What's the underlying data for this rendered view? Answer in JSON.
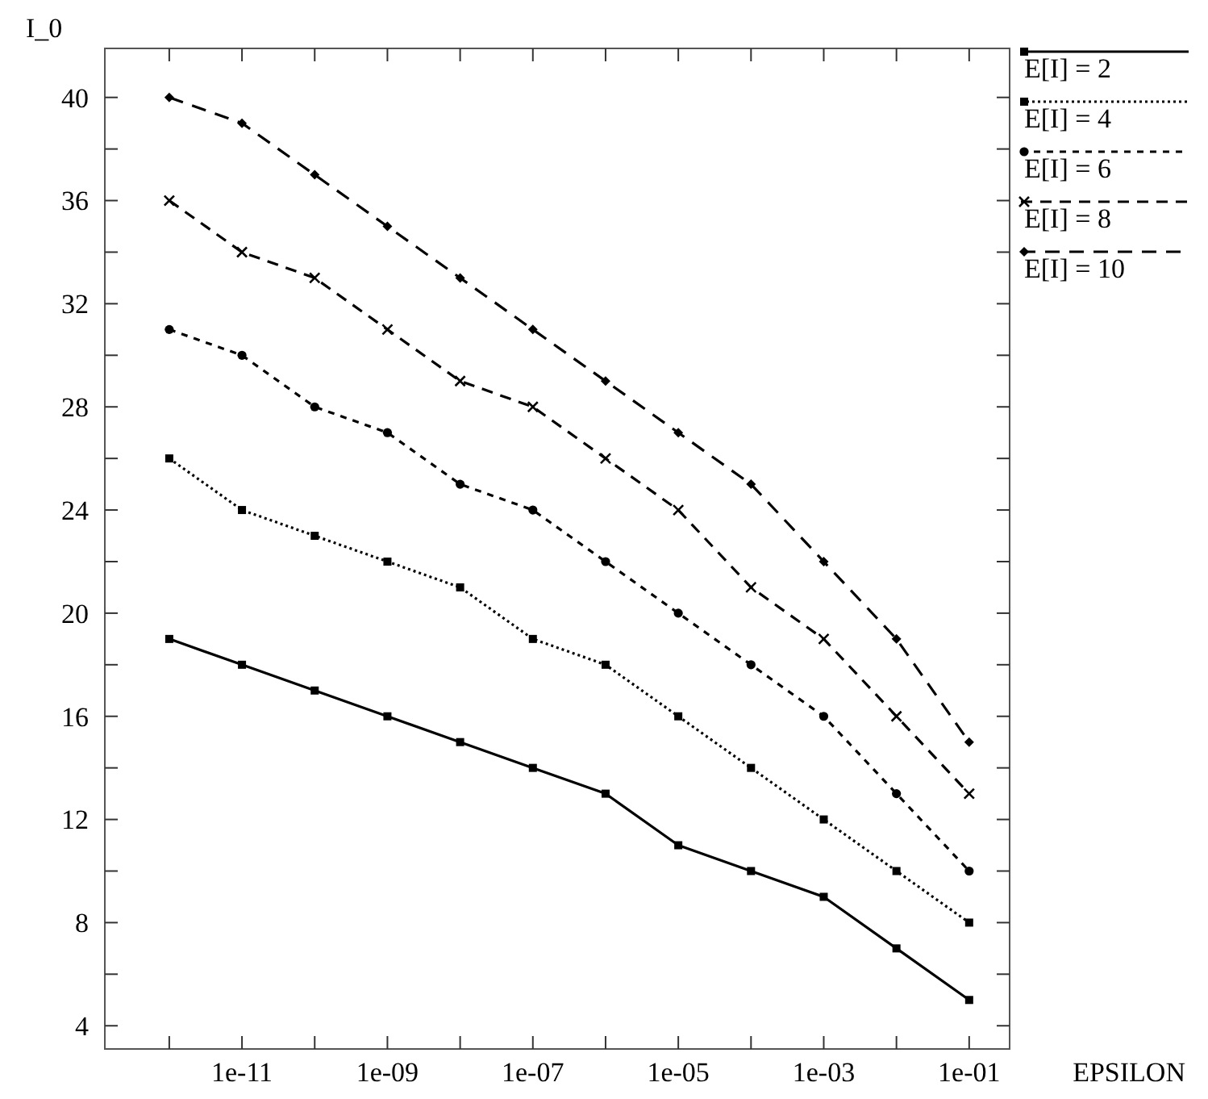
{
  "chart_data": {
    "type": "line",
    "xlabel": "EPSILON",
    "ylabel": "I_0",
    "log": "x",
    "grid": false,
    "legend": "top right",
    "x": [
      1e-12,
      1e-11,
      1e-10,
      1e-09,
      1e-08,
      1e-07,
      1e-06,
      1e-05,
      0.0001,
      0.001,
      0.01,
      0.1
    ],
    "xlim": [
      1.3e-13,
      0.36
    ],
    "xticks": [
      {
        "value": 1e-12,
        "label": null
      },
      {
        "value": 1e-11,
        "label": "1e-11"
      },
      {
        "value": 1e-10,
        "label": null
      },
      {
        "value": 1e-09,
        "label": "1e-09"
      },
      {
        "value": 1e-08,
        "label": null
      },
      {
        "value": 1e-07,
        "label": "1e-07"
      },
      {
        "value": 1e-06,
        "label": null
      },
      {
        "value": 1e-05,
        "label": "1e-05"
      },
      {
        "value": 0.0001,
        "label": null
      },
      {
        "value": 0.001,
        "label": "1e-03"
      },
      {
        "value": 0.01,
        "label": null
      },
      {
        "value": 0.1,
        "label": "1e-01"
      }
    ],
    "ylim": [
      3.1,
      41.9
    ],
    "yticks": [
      4,
      {
        "value": 6,
        "label": null
      },
      8,
      {
        "value": 10,
        "label": null
      },
      12,
      {
        "value": 14,
        "label": null
      },
      16,
      {
        "value": 18,
        "label": null
      },
      20,
      {
        "value": 22,
        "label": null
      },
      24,
      {
        "value": 26,
        "label": null
      },
      28,
      {
        "value": 30,
        "label": null
      },
      32,
      {
        "value": 34,
        "label": null
      },
      36,
      {
        "value": 38,
        "label": null
      },
      40
    ],
    "series": [
      {
        "name": "E[I] = 2",
        "color": "#000000",
        "marker": "square",
        "line_style": "solid",
        "values": [
          19,
          18,
          17,
          16,
          15,
          14,
          13,
          11,
          10,
          9,
          7,
          5
        ]
      },
      {
        "name": "E[I] = 4",
        "color": "#000000",
        "marker": "square",
        "line_style": "dotted",
        "values": [
          26,
          24,
          23,
          22,
          21,
          19,
          18,
          16,
          14,
          12,
          10,
          8
        ]
      },
      {
        "name": "E[I] = 6",
        "color": "#000000",
        "marker": "circle",
        "line_style": "dashed",
        "values": [
          31,
          30,
          28,
          27,
          25,
          24,
          22,
          20,
          18,
          16,
          13,
          10
        ]
      },
      {
        "name": "E[I] = 8",
        "color": "#000000",
        "marker": "cross",
        "line_style": "dashed",
        "values": [
          36,
          34,
          33,
          31,
          29,
          28,
          26,
          24,
          21,
          19,
          16,
          13
        ]
      },
      {
        "name": "E[I] = 10",
        "color": "#000000",
        "marker": "diamond",
        "line_style": "dashed",
        "values": [
          40,
          39,
          37,
          35,
          33,
          31,
          29,
          27,
          25,
          22,
          19,
          15
        ]
      }
    ]
  }
}
